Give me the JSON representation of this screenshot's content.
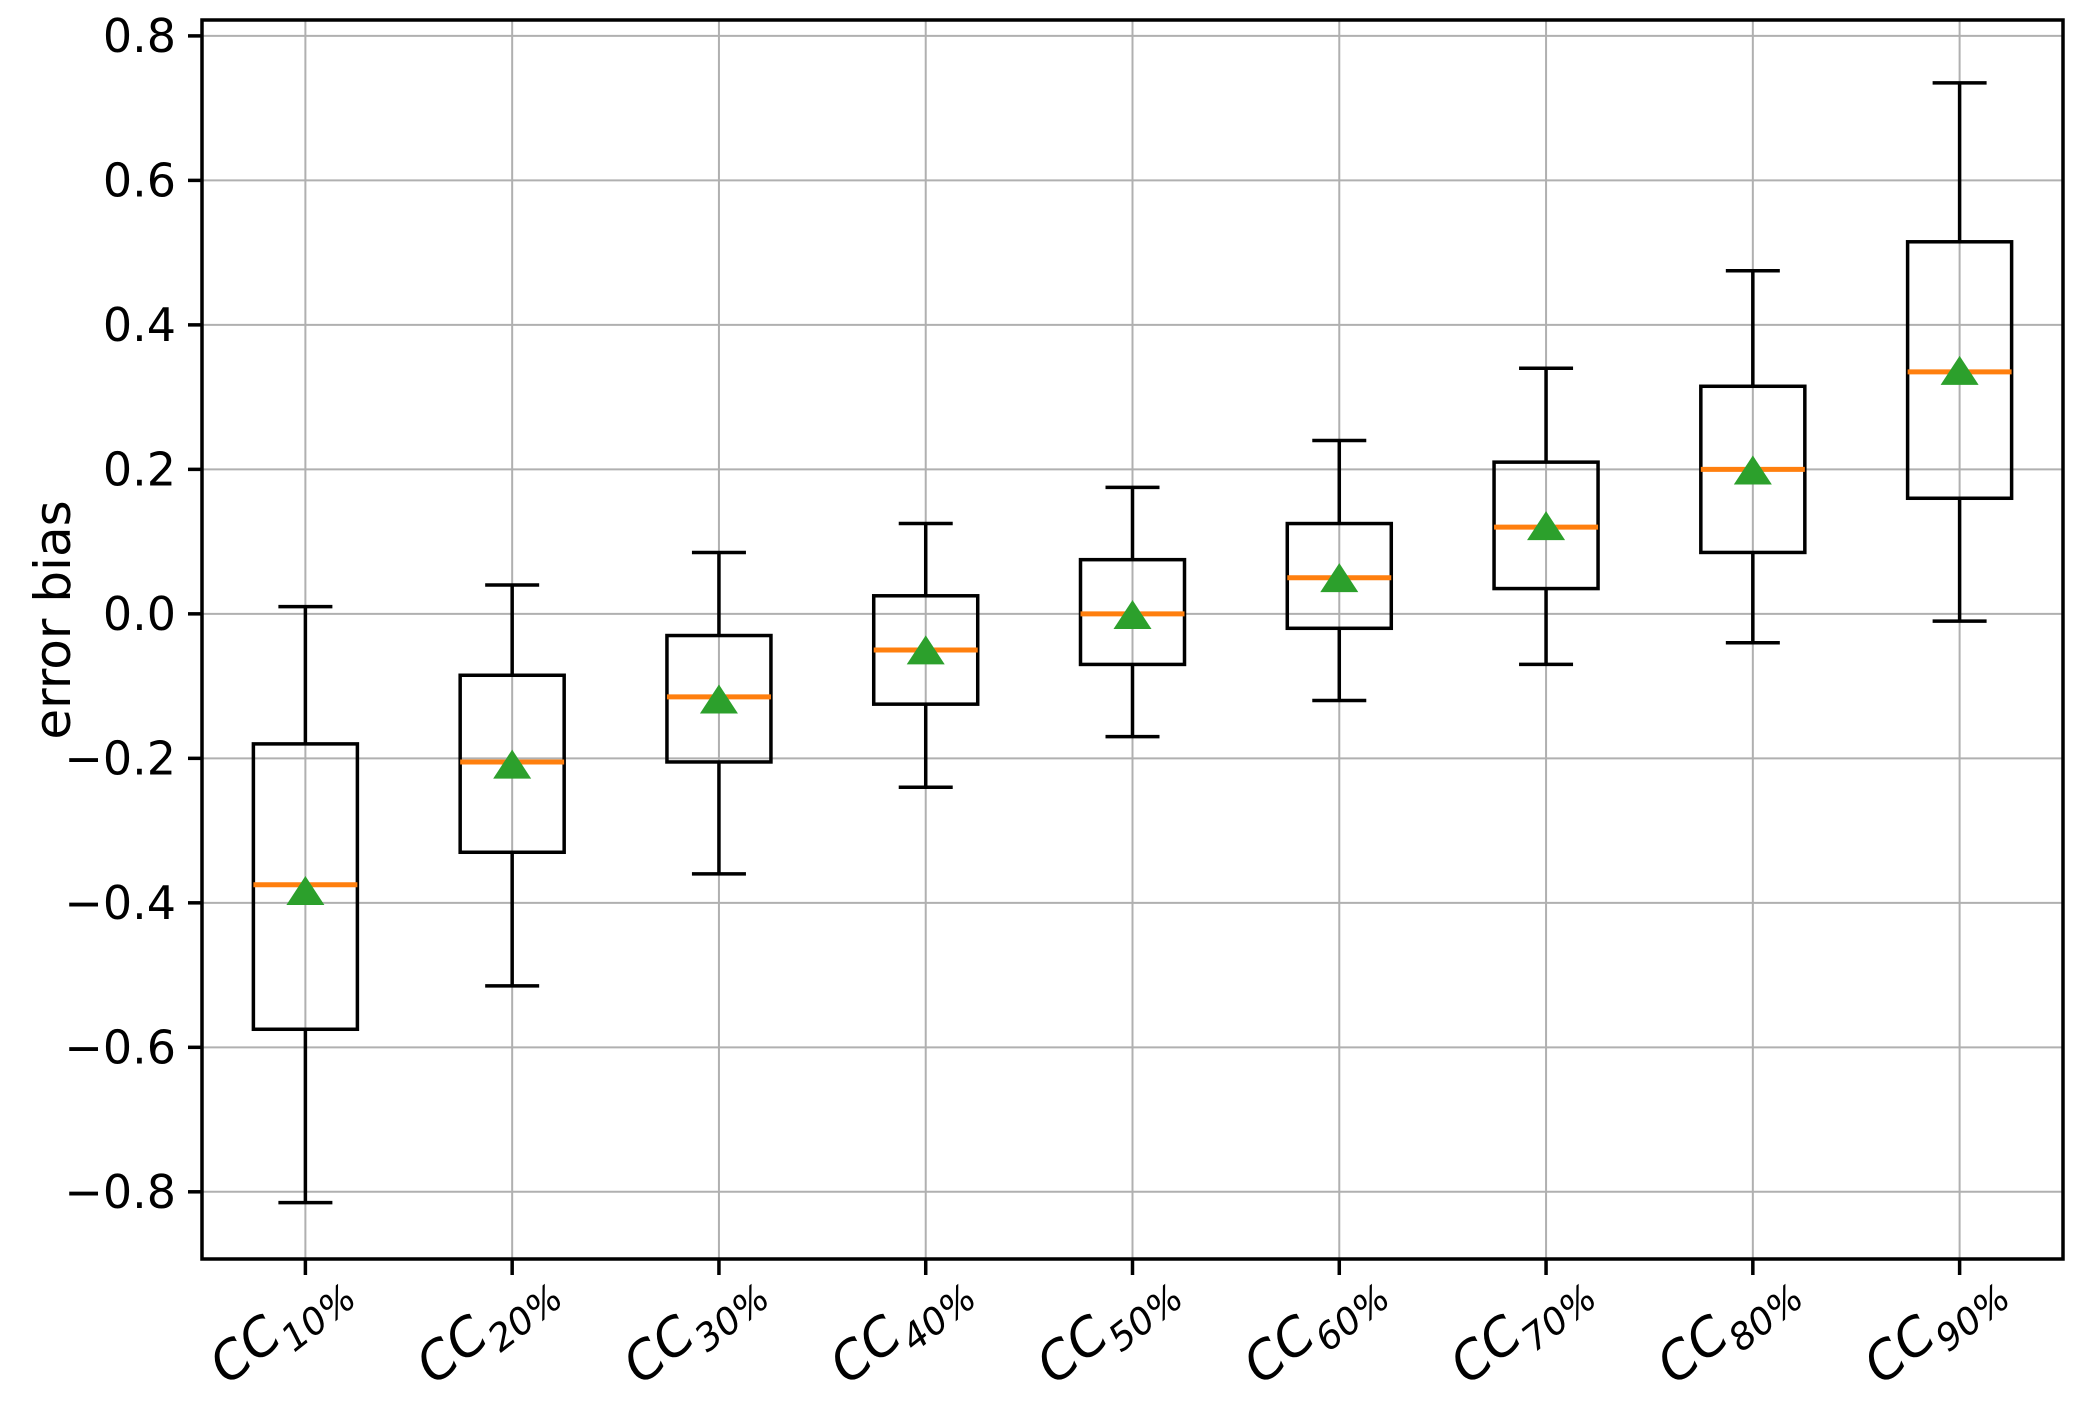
{
  "chart_data": {
    "type": "boxplot",
    "title": "",
    "xlabel": "",
    "ylabel": "error bias",
    "grid": true,
    "legend": "none",
    "ylim": [
      -0.893,
      0.822
    ],
    "yticks": [
      0.8,
      0.6,
      0.4,
      0.2,
      0.0,
      -0.2,
      -0.4,
      -0.6,
      -0.8
    ],
    "ytick_labels": [
      "0.8",
      "0.6",
      "0.4",
      "0.2",
      "0.0",
      "−0.2",
      "−0.4",
      "−0.6",
      "−0.8"
    ],
    "categories": [
      "CC10%",
      "CC20%",
      "CC30%",
      "CC40%",
      "CC50%",
      "CC60%",
      "CC70%",
      "CC80%",
      "CC90%"
    ],
    "category_parts": [
      {
        "base": "CC",
        "sub": "10%"
      },
      {
        "base": "CC",
        "sub": "20%"
      },
      {
        "base": "CC",
        "sub": "30%"
      },
      {
        "base": "CC",
        "sub": "40%"
      },
      {
        "base": "CC",
        "sub": "50%"
      },
      {
        "base": "CC",
        "sub": "60%"
      },
      {
        "base": "CC",
        "sub": "70%"
      },
      {
        "base": "CC",
        "sub": "80%"
      },
      {
        "base": "CC",
        "sub": "90%"
      }
    ],
    "colors": {
      "box_edge": "#000000",
      "whisker": "#000000",
      "median": "#ff7f0e",
      "mean_marker": "#2ca02c",
      "grid": "#b0b0b0",
      "background": "#ffffff"
    },
    "series": [
      {
        "label": "CC10%",
        "whisker_low": -0.815,
        "q1": -0.575,
        "median": -0.375,
        "mean": -0.385,
        "q3": -0.18,
        "whisker_high": 0.01
      },
      {
        "label": "CC20%",
        "whisker_low": -0.515,
        "q1": -0.33,
        "median": -0.205,
        "mean": -0.21,
        "q3": -0.085,
        "whisker_high": 0.04
      },
      {
        "label": "CC30%",
        "whisker_low": -0.36,
        "q1": -0.205,
        "median": -0.115,
        "mean": -0.12,
        "q3": -0.03,
        "whisker_high": 0.085
      },
      {
        "label": "CC40%",
        "whisker_low": -0.24,
        "q1": -0.125,
        "median": -0.05,
        "mean": -0.052,
        "q3": 0.025,
        "whisker_high": 0.125
      },
      {
        "label": "CC50%",
        "whisker_low": -0.17,
        "q1": -0.07,
        "median": 0.0,
        "mean": -0.003,
        "q3": 0.075,
        "whisker_high": 0.175
      },
      {
        "label": "CC60%",
        "whisker_low": -0.12,
        "q1": -0.02,
        "median": 0.05,
        "mean": 0.048,
        "q3": 0.125,
        "whisker_high": 0.24
      },
      {
        "label": "CC70%",
        "whisker_low": -0.07,
        "q1": 0.035,
        "median": 0.12,
        "mean": 0.12,
        "q3": 0.21,
        "whisker_high": 0.34
      },
      {
        "label": "CC80%",
        "whisker_low": -0.04,
        "q1": 0.085,
        "median": 0.2,
        "mean": 0.197,
        "q3": 0.315,
        "whisker_high": 0.475
      },
      {
        "label": "CC90%",
        "whisker_low": -0.01,
        "q1": 0.16,
        "median": 0.335,
        "mean": 0.335,
        "q3": 0.515,
        "whisker_high": 0.735
      }
    ]
  }
}
